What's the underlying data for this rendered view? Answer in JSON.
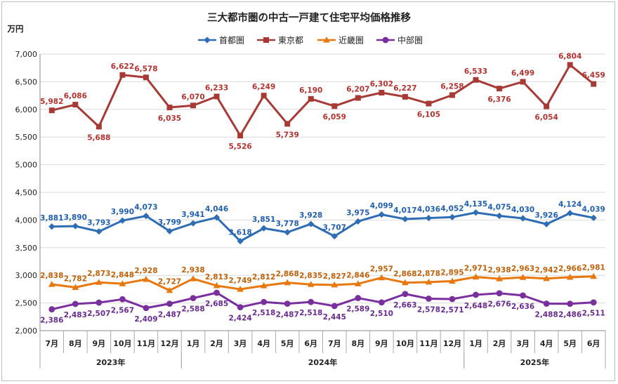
{
  "chart_data": {
    "type": "line",
    "title": "三大都市圏の中古一戸建て住宅平均価格推移",
    "ylabel": "万円",
    "xlabel": "",
    "ylim": [
      2000,
      7000
    ],
    "yticks": [
      "2,000",
      "2,500",
      "3,000",
      "3,500",
      "4,000",
      "4,500",
      "5,000",
      "5,500",
      "6,000",
      "6,500",
      "7,000"
    ],
    "grid": true,
    "legend_position": "top",
    "categories": [
      "7月",
      "8月",
      "9月",
      "10月",
      "11月",
      "12月",
      "1月",
      "2月",
      "3月",
      "4月",
      "5月",
      "6月",
      "7月",
      "8月",
      "9月",
      "10月",
      "11月",
      "12月",
      "1月",
      "2月",
      "3月",
      "4月",
      "5月",
      "6月"
    ],
    "year_groups": [
      {
        "label": "2023年",
        "count": 6
      },
      {
        "label": "2024年",
        "count": 12
      },
      {
        "label": "2025年",
        "count": 6
      }
    ],
    "series": [
      {
        "name": "首都圏",
        "color": "#2e6db4",
        "label_color": "#1f5fb0",
        "marker": "diamond",
        "label_pos": "above",
        "values": [
          3881,
          3890,
          3793,
          3990,
          4073,
          3799,
          3941,
          4046,
          3618,
          3851,
          3778,
          3928,
          3707,
          3975,
          4099,
          4017,
          4036,
          4052,
          4135,
          4075,
          4030,
          3926,
          4124,
          4039
        ],
        "labels": [
          "3,881",
          "3,890",
          "3,793",
          "3,990",
          "4,073",
          "3,799",
          "3,941",
          "4,046",
          "3,618",
          "3,851",
          "3,778",
          "3,928",
          "3,707",
          "3,975",
          "4,099",
          "4,017",
          "4,036",
          "4,052",
          "4,135",
          "4,075",
          "4,030",
          "3,926",
          "4,124",
          "4,039"
        ]
      },
      {
        "name": "東京都",
        "color": "#a83a36",
        "label_color": "#b3322e",
        "marker": "square",
        "label_pos": "auto",
        "values": [
          5982,
          6086,
          5688,
          6622,
          6578,
          6035,
          6070,
          6233,
          5526,
          6249,
          5739,
          6190,
          6059,
          6207,
          6302,
          6227,
          6105,
          6258,
          6533,
          6376,
          6499,
          6054,
          6804,
          6459
        ],
        "labels": [
          "5,982",
          "6,086",
          "5,688",
          "6,622",
          "6,578",
          "6,035",
          "6,070",
          "6,233",
          "5,526",
          "6,249",
          "5,739",
          "6,190",
          "6,059",
          "6,207",
          "6,302",
          "6,227",
          "6,105",
          "6,258",
          "6,533",
          "6,376",
          "6,499",
          "6,054",
          "6,804",
          "6,459"
        ]
      },
      {
        "name": "近畿圏",
        "color": "#e8780e",
        "label_color": "#c0620a",
        "marker": "triangle",
        "label_pos": "above",
        "values": [
          2838,
          2782,
          2873,
          2848,
          2928,
          2727,
          2938,
          2813,
          2749,
          2812,
          2868,
          2835,
          2827,
          2846,
          2957,
          2868,
          2878,
          2895,
          2971,
          2938,
          2963,
          2942,
          2966,
          2981
        ],
        "labels": [
          "2,838",
          "2,782",
          "2,873",
          "2,848",
          "2,928",
          "2,727",
          "2,938",
          "2,813",
          "2,749",
          "2,812",
          "2,868",
          "2,835",
          "2,827",
          "2,846",
          "2,957",
          "2,868",
          "2,878",
          "2,895",
          "2,971",
          "2,938",
          "2,963",
          "2,942",
          "2,966",
          "2,981"
        ]
      },
      {
        "name": "中部圏",
        "color": "#7a2f9e",
        "label_color": "#6a2a90",
        "marker": "circle",
        "label_pos": "below",
        "values": [
          2386,
          2483,
          2507,
          2567,
          2409,
          2487,
          2588,
          2685,
          2424,
          2518,
          2487,
          2518,
          2445,
          2589,
          2510,
          2663,
          2578,
          2571,
          2648,
          2676,
          2636,
          2488,
          2486,
          2511
        ],
        "labels": [
          "2,386",
          "2,483",
          "2,507",
          "2,567",
          "2,409",
          "2,487",
          "2,588",
          "2,685",
          "2,424",
          "2,518",
          "2,487",
          "2,518",
          "2,445",
          "2,589",
          "2,510",
          "2,663",
          "2,578",
          "2,571",
          "2,648",
          "2,676",
          "2,636",
          "2,488",
          "2,486",
          "2,511"
        ]
      }
    ]
  }
}
